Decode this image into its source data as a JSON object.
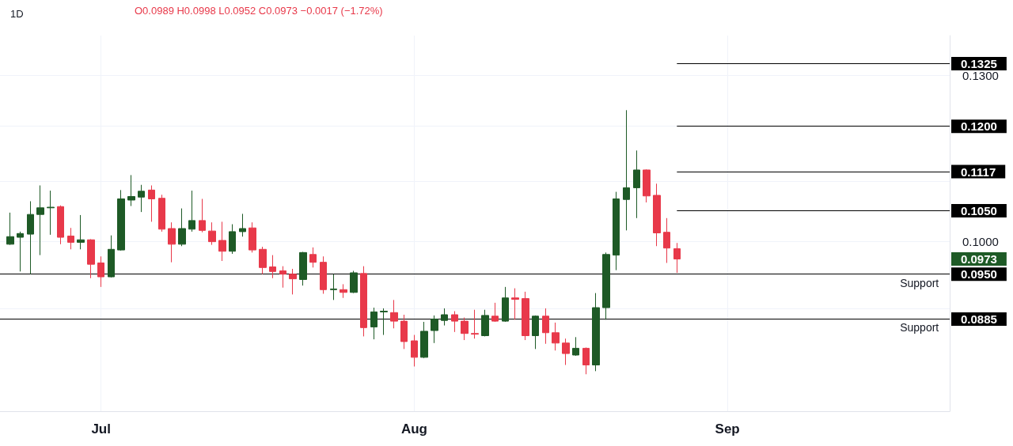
{
  "chart_data": {
    "type": "candlestick",
    "title": "1D",
    "annotations": [
      "O0.0989 H0.0998 L0.0952 C0.0973 −0.0017 (−1.72%)",
      "0.0973",
      {
        "text": "Support",
        "x": "--09-20",
        "y": 0.095
      },
      {
        "text": "Support",
        "x": "--09-20",
        "y": 0.0885
      }
    ],
    "x": [
      "--06-22",
      "--06-23",
      "--06-24",
      "--06-25",
      "--06-26",
      "--06-27",
      "--06-28",
      "--06-29",
      "--06-30",
      "--07-01",
      "--07-02",
      "--07-03",
      "--07-04",
      "--07-05",
      "--07-06",
      "--07-07",
      "--07-08",
      "--07-09",
      "--07-10",
      "--07-11",
      "--07-12",
      "--07-13",
      "--07-14",
      "--07-15",
      "--07-16",
      "--07-17",
      "--07-18",
      "--07-19",
      "--07-20",
      "--07-21",
      "--07-22",
      "--07-23",
      "--07-24",
      "--07-25",
      "--07-26",
      "--07-27",
      "--07-28",
      "--07-29",
      "--07-30",
      "--07-31",
      "--08-01",
      "--08-02",
      "--08-03",
      "--08-04",
      "--08-05",
      "--08-06",
      "--08-07",
      "--08-08",
      "--08-09",
      "--08-10",
      "--08-11",
      "--08-12",
      "--08-13",
      "--08-14",
      "--08-15",
      "--08-16",
      "--08-17",
      "--08-18",
      "--08-19",
      "--08-20",
      "--08-21",
      "--08-22",
      "--08-23",
      "--08-24",
      "--08-25",
      "--08-26",
      "--08-27"
    ],
    "ohlc": [
      [
        0.0996,
        0.1047,
        0.0995,
        0.1008
      ],
      [
        0.1007,
        0.1016,
        0.0954,
        0.1013
      ],
      [
        0.1012,
        0.1066,
        0.095,
        0.1044
      ],
      [
        0.1044,
        0.1093,
        0.0979,
        0.1055
      ],
      [
        0.1055,
        0.1084,
        0.1011,
        0.1056
      ],
      [
        0.1057,
        0.1059,
        0.0996,
        0.1007
      ],
      [
        0.1009,
        0.1022,
        0.0988,
        0.0999
      ],
      [
        0.0999,
        0.1043,
        0.0988,
        0.1003
      ],
      [
        0.1003,
        0.1004,
        0.0944,
        0.0965
      ],
      [
        0.0967,
        0.0977,
        0.0931,
        0.0946
      ],
      [
        0.0946,
        0.101,
        0.0945,
        0.0988
      ],
      [
        0.0987,
        0.1085,
        0.0986,
        0.107
      ],
      [
        0.1068,
        0.1111,
        0.1058,
        0.1074
      ],
      [
        0.1073,
        0.1094,
        0.1048,
        0.1083
      ],
      [
        0.1085,
        0.1093,
        0.1032,
        0.107
      ],
      [
        0.1071,
        0.1077,
        0.1016,
        0.102
      ],
      [
        0.1021,
        0.1031,
        0.0968,
        0.0996
      ],
      [
        0.0996,
        0.1054,
        0.0993,
        0.1021
      ],
      [
        0.102,
        0.1084,
        0.1016,
        0.1034
      ],
      [
        0.1034,
        0.107,
        0.1015,
        0.1018
      ],
      [
        0.1017,
        0.1031,
        0.0995,
        0.1
      ],
      [
        0.1002,
        0.1032,
        0.097,
        0.0985
      ],
      [
        0.0985,
        0.1028,
        0.0981,
        0.1016
      ],
      [
        0.1016,
        0.1045,
        0.1008,
        0.1021
      ],
      [
        0.1022,
        0.1031,
        0.0983,
        0.0987
      ],
      [
        0.0988,
        0.0992,
        0.095,
        0.096
      ],
      [
        0.0961,
        0.0979,
        0.0944,
        0.0954
      ],
      [
        0.0955,
        0.0962,
        0.093,
        0.095
      ],
      [
        0.095,
        0.0958,
        0.092,
        0.0943
      ],
      [
        0.0942,
        0.0984,
        0.0933,
        0.0983
      ],
      [
        0.098,
        0.0991,
        0.096,
        0.0968
      ],
      [
        0.0968,
        0.0977,
        0.0921,
        0.0927
      ],
      [
        0.0927,
        0.095,
        0.0912,
        0.0928
      ],
      [
        0.0927,
        0.0935,
        0.0915,
        0.0923
      ],
      [
        0.0923,
        0.0955,
        0.0922,
        0.0952
      ],
      [
        0.0951,
        0.0962,
        0.0861,
        0.0873
      ],
      [
        0.0874,
        0.0901,
        0.0857,
        0.0895
      ],
      [
        0.0895,
        0.09,
        0.0863,
        0.0896
      ],
      [
        0.0894,
        0.0912,
        0.0872,
        0.0882
      ],
      [
        0.0882,
        0.0891,
        0.0844,
        0.0854
      ],
      [
        0.0855,
        0.0863,
        0.0821,
        0.0833
      ],
      [
        0.0833,
        0.0881,
        0.0832,
        0.0868
      ],
      [
        0.0869,
        0.089,
        0.0852,
        0.0885
      ],
      [
        0.0883,
        0.09,
        0.0876,
        0.0891
      ],
      [
        0.0891,
        0.0896,
        0.0867,
        0.0882
      ],
      [
        0.0882,
        0.0887,
        0.0856,
        0.0865
      ],
      [
        0.0865,
        0.0898,
        0.0858,
        0.0864
      ],
      [
        0.0862,
        0.0898,
        0.0861,
        0.089
      ],
      [
        0.0889,
        0.0908,
        0.0881,
        0.0882
      ],
      [
        0.0882,
        0.0931,
        0.0881,
        0.0915
      ],
      [
        0.0915,
        0.0929,
        0.0884,
        0.0913
      ],
      [
        0.0914,
        0.0924,
        0.0856,
        0.0862
      ],
      [
        0.0862,
        0.089,
        0.0844,
        0.0889
      ],
      [
        0.0889,
        0.09,
        0.0851,
        0.0866
      ],
      [
        0.0866,
        0.088,
        0.0842,
        0.0852
      ],
      [
        0.0852,
        0.0858,
        0.0823,
        0.0838
      ],
      [
        0.0836,
        0.086,
        0.0835,
        0.0845
      ],
      [
        0.0845,
        0.0846,
        0.0811,
        0.0823
      ],
      [
        0.0823,
        0.0922,
        0.0815,
        0.0901
      ],
      [
        0.0901,
        0.0983,
        0.0884,
        0.098
      ],
      [
        0.0979,
        0.1082,
        0.0956,
        0.107
      ],
      [
        0.1069,
        0.1231,
        0.1018,
        0.1089
      ],
      [
        0.1089,
        0.1155,
        0.1038,
        0.112
      ],
      [
        0.112,
        0.1121,
        0.1064,
        0.1075
      ],
      [
        0.1076,
        0.1096,
        0.0993,
        0.1014
      ],
      [
        0.1015,
        0.1038,
        0.0967,
        0.099
      ],
      [
        0.0989,
        0.0998,
        0.0952,
        0.0973
      ]
    ],
    "colors": [
      "#1e5a26",
      "#1e5a26",
      "#1e5a26",
      "#1e5a26",
      "#1e5a26",
      "#e8394a",
      "#e8394a",
      "#1e5a26",
      "#e8394a",
      "#e8394a",
      "#1e5a26",
      "#1e5a26",
      "#1e5a26",
      "#1e5a26",
      "#e8394a",
      "#e8394a",
      "#e8394a",
      "#1e5a26",
      "#1e5a26",
      "#e8394a",
      "#e8394a",
      "#e8394a",
      "#1e5a26",
      "#1e5a26",
      "#e8394a",
      "#e8394a",
      "#e8394a",
      "#e8394a",
      "#e8394a",
      "#1e5a26",
      "#e8394a",
      "#e8394a",
      "#1e5a26",
      "#e8394a",
      "#1e5a26",
      "#e8394a",
      "#1e5a26",
      "#1e5a26",
      "#e8394a",
      "#e8394a",
      "#e8394a",
      "#1e5a26",
      "#1e5a26",
      "#1e5a26",
      "#e8394a",
      "#e8394a",
      "#e8394a",
      "#1e5a26",
      "#e8394a",
      "#1e5a26",
      "#e8394a",
      "#e8394a",
      "#1e5a26",
      "#e8394a",
      "#e8394a",
      "#e8394a",
      "#1e5a26",
      "#e8394a",
      "#1e5a26",
      "#1e5a26",
      "#1e5a26",
      "#1e5a26",
      "#1e5a26",
      "#e8394a",
      "#e8394a",
      "#e8394a",
      "#e8394a"
    ],
    "xlim": [
      "--06-21",
      "--09-23"
    ],
    "xticks": [
      {
        "value": "--07-01",
        "label": "Jul"
      },
      {
        "value": "--08-01",
        "label": "Aug"
      },
      {
        "value": "--09-01",
        "label": "Sep"
      }
    ],
    "ylim": [
      0.0765,
      0.1385
    ],
    "yticks": [
      {
        "value": 0.09,
        "label": null
      },
      {
        "value": 0.1,
        "label": "0.1000"
      },
      {
        "value": 0.11,
        "label": null
      },
      {
        "value": 0.12,
        "label": null
      },
      {
        "value": 0.13,
        "label": "0.1300"
      }
    ],
    "log": true,
    "grid": true,
    "ref_lines": [
      {
        "axis": "y",
        "value": 0.1325,
        "label": "0.1325",
        "color": "#000000"
      },
      {
        "axis": "y",
        "value": 0.12,
        "label": "0.1200",
        "color": "#000000"
      },
      {
        "axis": "y",
        "value": 0.1117,
        "label": "0.1117",
        "color": "#000000"
      },
      {
        "axis": "y",
        "value": 0.105,
        "label": "0.1050",
        "color": "#000000"
      },
      {
        "axis": "y",
        "value": 0.095,
        "label": "0.0950",
        "color": "#000000"
      },
      {
        "axis": "y",
        "value": 0.0885,
        "label": "0.0885",
        "color": "#000000"
      }
    ]
  }
}
